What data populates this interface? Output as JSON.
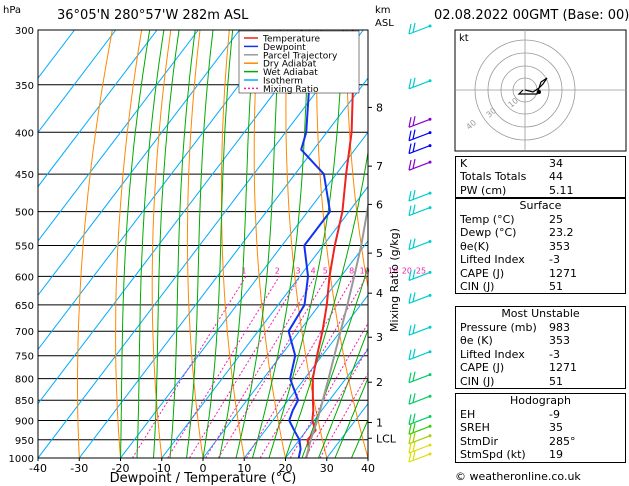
{
  "header": {
    "hpa_label": "hPa",
    "location": "36°05'N  280°57'W  282m  ASL",
    "km_label": "km",
    "asl_label": "ASL",
    "datetime": "02.08.2022  00GMT  (Base: 00)"
  },
  "chart_data": {
    "type": "line",
    "xlabel": "Dewpoint / Temperature (°C)",
    "ylabel": "hPa",
    "right_axis_label": "Mixing Ratio (g/kg)",
    "xlim": [
      -40,
      40
    ],
    "ylim": [
      1000,
      300
    ],
    "x_ticks": [
      "-40",
      "-30",
      "-20",
      "-10",
      "0",
      "10",
      "20",
      "30",
      "40"
    ],
    "pressure_ticks": [
      "300",
      "350",
      "400",
      "450",
      "500",
      "550",
      "600",
      "650",
      "700",
      "750",
      "800",
      "850",
      "900",
      "950",
      "1000"
    ],
    "km_ticks": [
      {
        "label": "8",
        "p": 373
      },
      {
        "label": "7",
        "p": 440
      },
      {
        "label": "6",
        "p": 490
      },
      {
        "label": "5",
        "p": 562
      },
      {
        "label": "4",
        "p": 629
      },
      {
        "label": "3",
        "p": 712
      },
      {
        "label": "2",
        "p": 808
      },
      {
        "label": "1",
        "p": 905
      },
      {
        "label": "LCL",
        "p": 946
      }
    ],
    "mixing_ratio_labels": [
      "1",
      "2",
      "3",
      "4",
      "5",
      "8",
      "10",
      "16",
      "20",
      "25"
    ],
    "mixing_ratio_values": [
      1,
      2,
      3,
      4,
      5,
      8,
      10,
      16,
      20,
      25
    ],
    "legend": [
      "Temperature",
      "Dewpoint",
      "Parcel Trajectory",
      "Dry Adiabat",
      "Wet Adiabat",
      "Isotherm",
      "Mixing Ratio"
    ],
    "colors": {
      "temperature": "#ee2222",
      "dewpoint": "#1133ee",
      "parcel": "#999999",
      "dry_adiabat": "#ff8800",
      "wet_adiabat": "#00aa00",
      "isotherm": "#00aaff",
      "mixing_ratio": "#ee22aa"
    },
    "series": [
      {
        "name": "Temperature",
        "points": [
          [
            1000,
            25
          ],
          [
            975,
            24
          ],
          [
            950,
            22
          ],
          [
            925,
            22.2
          ],
          [
            900,
            19.6
          ],
          [
            875,
            18
          ],
          [
            850,
            16
          ],
          [
            800,
            12
          ],
          [
            750,
            8.8
          ],
          [
            700,
            5.6
          ],
          [
            650,
            1.8
          ],
          [
            600,
            -2.8
          ],
          [
            550,
            -7.2
          ],
          [
            500,
            -11.6
          ],
          [
            450,
            -17.6
          ],
          [
            400,
            -24
          ],
          [
            350,
            -32.4
          ],
          [
            300,
            -42.6
          ]
        ]
      },
      {
        "name": "Dewpoint",
        "points": [
          [
            1000,
            23.2
          ],
          [
            975,
            22
          ],
          [
            950,
            20
          ],
          [
            925,
            17
          ],
          [
            900,
            14
          ],
          [
            875,
            13
          ],
          [
            850,
            12.4
          ],
          [
            800,
            6.5
          ],
          [
            750,
            3.5
          ],
          [
            700,
            -2.6
          ],
          [
            650,
            -3.6
          ],
          [
            600,
            -8
          ],
          [
            550,
            -14.6
          ],
          [
            500,
            -14.6
          ],
          [
            450,
            -23
          ],
          [
            420,
            -33
          ],
          [
            400,
            -35
          ],
          [
            350,
            -43
          ],
          [
            300,
            -55
          ]
        ]
      },
      {
        "name": "Parcel Trajectory",
        "points": [
          [
            1000,
            25
          ],
          [
            946,
            22.6
          ],
          [
            900,
            20.8
          ],
          [
            850,
            18.4
          ],
          [
            800,
            15.8
          ],
          [
            750,
            13
          ],
          [
            700,
            10
          ],
          [
            650,
            6.8
          ],
          [
            600,
            3.2
          ],
          [
            550,
            -0.8
          ],
          [
            500,
            -5.6
          ],
          [
            450,
            -11
          ],
          [
            400,
            -17.4
          ],
          [
            350,
            -25.2
          ],
          [
            300,
            -34.6
          ]
        ]
      }
    ]
  },
  "hodograph": {
    "label": "kt",
    "ring_labels": [
      "10",
      "30",
      "40"
    ],
    "rings": [
      10,
      20,
      30,
      40
    ]
  },
  "winds": [
    {
      "p": 300,
      "color": "#00cccc"
    },
    {
      "p": 350,
      "color": "#00cccc"
    },
    {
      "p": 390,
      "color": "#8800cc"
    },
    {
      "p": 405,
      "color": "#0000ff"
    },
    {
      "p": 420,
      "color": "#0000ff"
    },
    {
      "p": 440,
      "color": "#8800cc"
    },
    {
      "p": 480,
      "color": "#00cccc"
    },
    {
      "p": 500,
      "color": "#00cccc"
    },
    {
      "p": 550,
      "color": "#00cccc"
    },
    {
      "p": 600,
      "color": "#00cccc"
    },
    {
      "p": 640,
      "color": "#00cccc"
    },
    {
      "p": 700,
      "color": "#00cccc"
    },
    {
      "p": 750,
      "color": "#00cccc"
    },
    {
      "p": 800,
      "color": "#00cc66"
    },
    {
      "p": 850,
      "color": "#00cc66"
    },
    {
      "p": 900,
      "color": "#00cc66"
    },
    {
      "p": 925,
      "color": "#33cc00"
    },
    {
      "p": 950,
      "color": "#aacc00"
    },
    {
      "p": 975,
      "color": "#dddd00"
    },
    {
      "p": 1000,
      "color": "#dddd00"
    }
  ],
  "indices": [
    {
      "k": "K",
      "v": "34"
    },
    {
      "k": "Totals Totals",
      "v": "44"
    },
    {
      "k": "PW (cm)",
      "v": "5.11"
    }
  ],
  "surface": {
    "title": "Surface",
    "rows": [
      {
        "k": "Temp (°C)",
        "v": "25"
      },
      {
        "k": "Dewp (°C)",
        "v": "23.2"
      },
      {
        "k": "θe(K)",
        "v": "353"
      },
      {
        "k": "Lifted Index",
        "v": "-3"
      },
      {
        "k": "CAPE (J)",
        "v": "1271"
      },
      {
        "k": "CIN (J)",
        "v": "51"
      }
    ]
  },
  "most_unstable": {
    "title": "Most Unstable",
    "rows": [
      {
        "k": "Pressure (mb)",
        "v": "983"
      },
      {
        "k": "θe (K)",
        "v": "353"
      },
      {
        "k": "Lifted Index",
        "v": "-3"
      },
      {
        "k": "CAPE (J)",
        "v": "1271"
      },
      {
        "k": "CIN (J)",
        "v": "51"
      }
    ]
  },
  "hodograph_table": {
    "title": "Hodograph",
    "rows": [
      {
        "k": "EH",
        "v": "-9"
      },
      {
        "k": "SREH",
        "v": "35"
      },
      {
        "k": "StmDir",
        "v": "285°"
      },
      {
        "k": "StmSpd (kt)",
        "v": "19"
      }
    ]
  },
  "credit": "© weatheronline.co.uk"
}
